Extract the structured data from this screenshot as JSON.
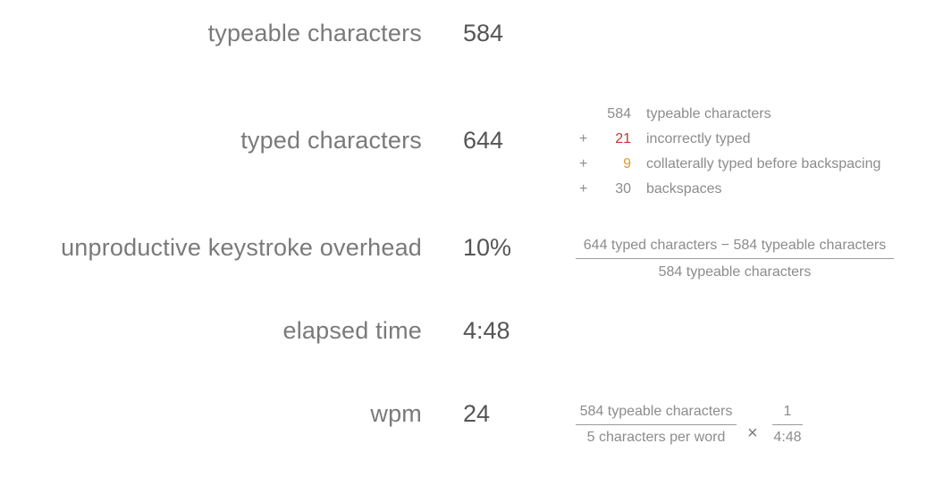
{
  "stats": {
    "typeable": {
      "label": "typeable characters",
      "value": "584"
    },
    "typed": {
      "label": "typed characters",
      "value": "644"
    },
    "overhead": {
      "label": "unproductive keystroke overhead",
      "value": "10%"
    },
    "elapsed": {
      "label": "elapsed time",
      "value": "4:48"
    },
    "wpm": {
      "label": "wpm",
      "value": "24"
    }
  },
  "breakdown": [
    {
      "op": "",
      "num": "584",
      "desc": "typeable characters"
    },
    {
      "op": "+",
      "num": "21",
      "desc": "incorrectly typed",
      "color": "#c0392b"
    },
    {
      "op": "+",
      "num": "9",
      "desc": "collaterally typed before backspacing",
      "color": "#e0982e"
    },
    {
      "op": "+",
      "num": "30",
      "desc": "backspaces"
    }
  ],
  "overhead_formula": {
    "numerator": "644 typed characters − 584 typeable characters",
    "denominator": "584 typeable characters"
  },
  "wpm_formula": {
    "numerator": "584 typeable characters",
    "denominator": "5 characters per word",
    "times": "×",
    "numerator2": "1",
    "denominator2": "4:48"
  }
}
